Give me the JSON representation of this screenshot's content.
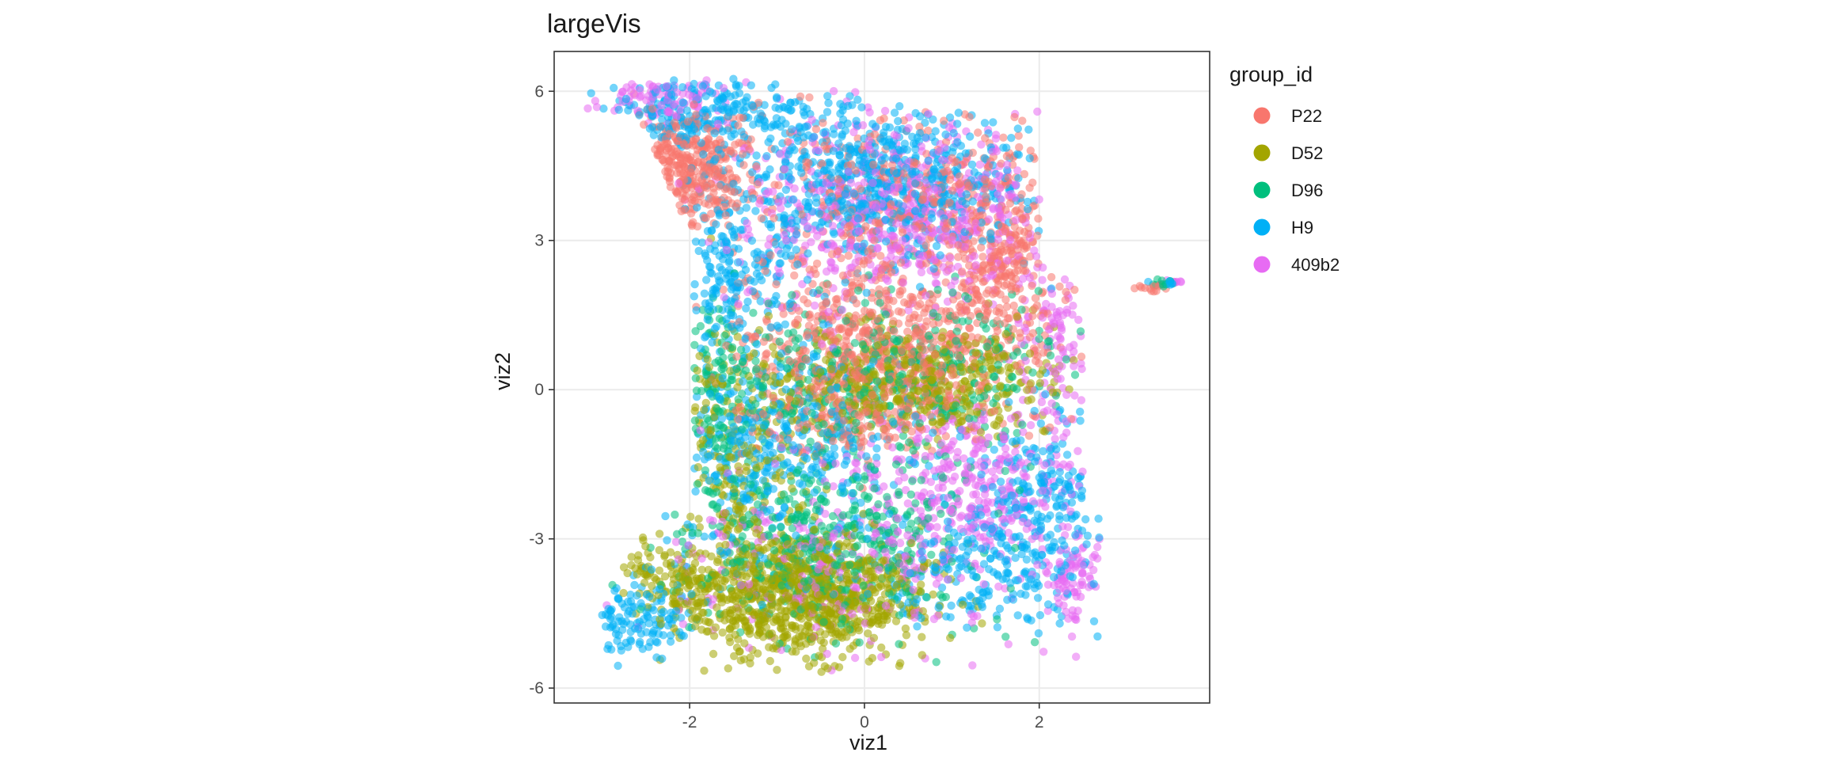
{
  "chart_data": {
    "type": "scatter",
    "title": "largeVis",
    "xlabel": "viz1",
    "ylabel": "viz2",
    "xlim": [
      -3.55,
      3.95
    ],
    "ylim": [
      -6.3,
      6.8
    ],
    "x_ticks": [
      -2,
      0,
      2
    ],
    "x_tick_labels": [
      "-2",
      "0",
      "2"
    ],
    "y_ticks": [
      -6,
      -3,
      0,
      3,
      6
    ],
    "y_tick_labels": [
      "-6",
      "-3",
      "0",
      "3",
      "6"
    ],
    "grid": true,
    "legend": {
      "title": "group_id",
      "placement": "right",
      "entries": [
        {
          "name": "P22",
          "color": "#F8766D"
        },
        {
          "name": "D52",
          "color": "#A3A500"
        },
        {
          "name": "D96",
          "color": "#00BF7D"
        },
        {
          "name": "H9",
          "color": "#00B0F6"
        },
        {
          "name": "409b2",
          "color": "#E76BF3"
        }
      ]
    },
    "marker_opacity": 0.55,
    "series": [
      {
        "name": "P22",
        "color": "#F8766D",
        "clusters": [
          {
            "cx": -2.1,
            "cy": 4.4,
            "sx": 0.35,
            "sy": 0.55,
            "n": 320
          },
          {
            "cx": 0.3,
            "cy": 1.0,
            "sx": 0.95,
            "sy": 0.9,
            "n": 700
          },
          {
            "cx": 0.6,
            "cy": 4.0,
            "sx": 0.9,
            "sy": 0.8,
            "n": 380
          },
          {
            "cx": 1.6,
            "cy": 2.7,
            "sx": 0.3,
            "sy": 0.6,
            "n": 160
          },
          {
            "cx": -0.2,
            "cy": -0.6,
            "sx": 0.5,
            "sy": 0.35,
            "n": 140
          },
          {
            "cx": 3.3,
            "cy": 2.05,
            "sx": 0.18,
            "sy": 0.04,
            "n": 12
          }
        ]
      },
      {
        "name": "D52",
        "color": "#A3A500",
        "clusters": [
          {
            "cx": -0.7,
            "cy": -4.2,
            "sx": 0.7,
            "sy": 0.6,
            "n": 900
          },
          {
            "cx": 0.5,
            "cy": 0.1,
            "sx": 0.9,
            "sy": 0.55,
            "n": 500
          },
          {
            "cx": -1.5,
            "cy": -1.5,
            "sx": 0.45,
            "sy": 1.2,
            "n": 200
          },
          {
            "cx": -2.2,
            "cy": -3.8,
            "sx": 0.3,
            "sy": 0.35,
            "n": 100
          }
        ]
      },
      {
        "name": "D96",
        "color": "#00BF7D",
        "clusters": [
          {
            "cx": -0.5,
            "cy": -3.0,
            "sx": 0.9,
            "sy": 1.0,
            "n": 500
          },
          {
            "cx": 0.4,
            "cy": 0.5,
            "sx": 0.9,
            "sy": 0.8,
            "n": 350
          },
          {
            "cx": -1.8,
            "cy": 0.0,
            "sx": 0.35,
            "sy": 0.8,
            "n": 120
          },
          {
            "cx": 3.4,
            "cy": 2.15,
            "sx": 0.15,
            "sy": 0.05,
            "n": 10
          }
        ]
      },
      {
        "name": "H9",
        "color": "#00B0F6",
        "clusters": [
          {
            "cx": 0.1,
            "cy": 4.2,
            "sx": 0.9,
            "sy": 0.85,
            "n": 700
          },
          {
            "cx": -1.9,
            "cy": 5.6,
            "sx": 0.6,
            "sy": 0.35,
            "n": 220
          },
          {
            "cx": -1.0,
            "cy": -1.2,
            "sx": 0.7,
            "sy": 1.3,
            "n": 450
          },
          {
            "cx": 2.0,
            "cy": -2.4,
            "sx": 0.4,
            "sy": 1.0,
            "n": 260
          },
          {
            "cx": -2.6,
            "cy": -4.6,
            "sx": 0.35,
            "sy": 0.35,
            "n": 120
          },
          {
            "cx": 1.2,
            "cy": -3.6,
            "sx": 0.5,
            "sy": 0.6,
            "n": 150
          },
          {
            "cx": -1.7,
            "cy": 2.5,
            "sx": 0.4,
            "sy": 0.7,
            "n": 160
          },
          {
            "cx": 3.45,
            "cy": 2.15,
            "sx": 0.12,
            "sy": 0.04,
            "n": 8
          }
        ]
      },
      {
        "name": "409b2",
        "color": "#E76BF3",
        "clusters": [
          {
            "cx": 0.4,
            "cy": 3.5,
            "sx": 1.0,
            "sy": 1.0,
            "n": 600
          },
          {
            "cx": 1.3,
            "cy": -1.9,
            "sx": 0.6,
            "sy": 0.8,
            "n": 320
          },
          {
            "cx": -0.3,
            "cy": -3.5,
            "sx": 1.0,
            "sy": 0.9,
            "n": 280
          },
          {
            "cx": 2.4,
            "cy": -3.8,
            "sx": 0.2,
            "sy": 0.4,
            "n": 80
          },
          {
            "cx": -2.4,
            "cy": 5.8,
            "sx": 0.4,
            "sy": 0.25,
            "n": 90
          },
          {
            "cx": 2.2,
            "cy": 0.8,
            "sx": 0.3,
            "sy": 1.2,
            "n": 110
          },
          {
            "cx": 3.5,
            "cy": 2.15,
            "sx": 0.1,
            "sy": 0.04,
            "n": 6
          }
        ]
      }
    ]
  }
}
